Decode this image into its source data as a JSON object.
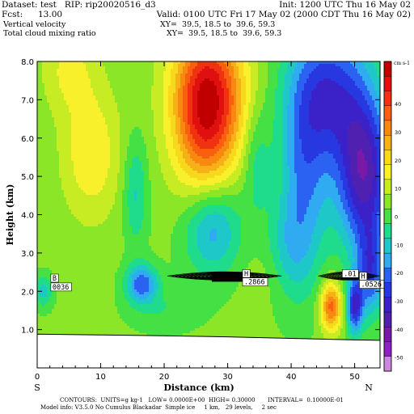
{
  "header": {
    "dataset_line": "Dataset: test   RIP: rip20020516_d3",
    "init_line": "Init: 1200 UTC Thu 16 May 02",
    "fcst_label": "Fcst:",
    "fcst_value": "13.00",
    "valid_line": "Valid: 0100 UTC Fri 17 May 02 (2000 CDT Thu 16 May 02)",
    "field1_name": "Vertical velocity",
    "field1_xy": "XY=  39.5, 18.5 to  39.6, 59.3",
    "field2_name": "Total cloud mixing ratio",
    "field2_xy": "XY=  39.5, 18.5 to  39.6, 59.3"
  },
  "footer": {
    "contours_line": "CONTOURS:  UNITS=g kg-1   LOW= 0.0000E+00  HIGH= 0.30000       INTERVAL=  0.10000E-01",
    "model_info_line": "Model info: V3.5.0 No Cumulus Blackadar  Simple ice     1 km,   29 levels,     2 sec"
  },
  "colors": {
    "terrain": "#ffffff",
    "frame": "#000000",
    "contour": "#000000"
  },
  "chart_data": {
    "type": "heatmap",
    "xlabel": "Distance (km)",
    "ylabel": "Height (km)",
    "x_ticks": [
      0,
      10,
      20,
      30,
      40,
      50
    ],
    "y_ticks": [
      1.0,
      2.0,
      3.0,
      4.0,
      5.0,
      6.0,
      7.0,
      8.0
    ],
    "xlim": [
      0,
      54
    ],
    "ylim": [
      0,
      8
    ],
    "x_end_labels": {
      "left": "S",
      "right": "N"
    },
    "colorbar": {
      "unit": "cm s-1",
      "tick_labels": [
        40,
        30,
        20,
        10,
        0,
        -10,
        -20,
        -30,
        -40,
        -50
      ],
      "min": -55,
      "max": 55,
      "colors": [
        "#cc88dd",
        "#8e1ec8",
        "#7a18aa",
        "#5020b0",
        "#3a22c8",
        "#2838e0",
        "#2c62f2",
        "#30aaf0",
        "#1ec8c8",
        "#1edc8c",
        "#44e044",
        "#8ce628",
        "#c8ec24",
        "#f8f02a",
        "#f8d81c",
        "#f8b018",
        "#f88810",
        "#f86010",
        "#f03210",
        "#e01010",
        "#c00000"
      ]
    },
    "mixing_ratio_labels": [
      {
        "text": "B",
        "x": 2.4,
        "y": 2.28
      },
      {
        "text": "0036",
        "x": 2.4,
        "y": 2.05
      },
      {
        "text": "H",
        "x": 32.6,
        "y": 2.4
      },
      {
        "text": ".2866",
        "x": 32.6,
        "y": 2.18
      },
      {
        "text": ".01",
        "x": 48.3,
        "y": 2.4
      },
      {
        "text": "H",
        "x": 51.0,
        "y": 2.33
      },
      {
        "text": ".0526",
        "x": 51.0,
        "y": 2.12
      }
    ],
    "velocity_centers": [
      {
        "x": 27.0,
        "y": 7.2,
        "value": 38
      },
      {
        "x": 36.5,
        "y": 2.4,
        "value": 3
      },
      {
        "x": 46.3,
        "y": 1.6,
        "value": 33
      },
      {
        "x": 15.5,
        "y": 4.6,
        "value": -13
      },
      {
        "x": 16.5,
        "y": 2.2,
        "value": -26
      },
      {
        "x": 27.5,
        "y": 3.7,
        "value": -24
      },
      {
        "x": 46.0,
        "y": 7.2,
        "value": -28
      },
      {
        "x": 51.5,
        "y": 5.0,
        "value": -40
      },
      {
        "x": 50.0,
        "y": 1.6,
        "value": -32
      }
    ]
  }
}
